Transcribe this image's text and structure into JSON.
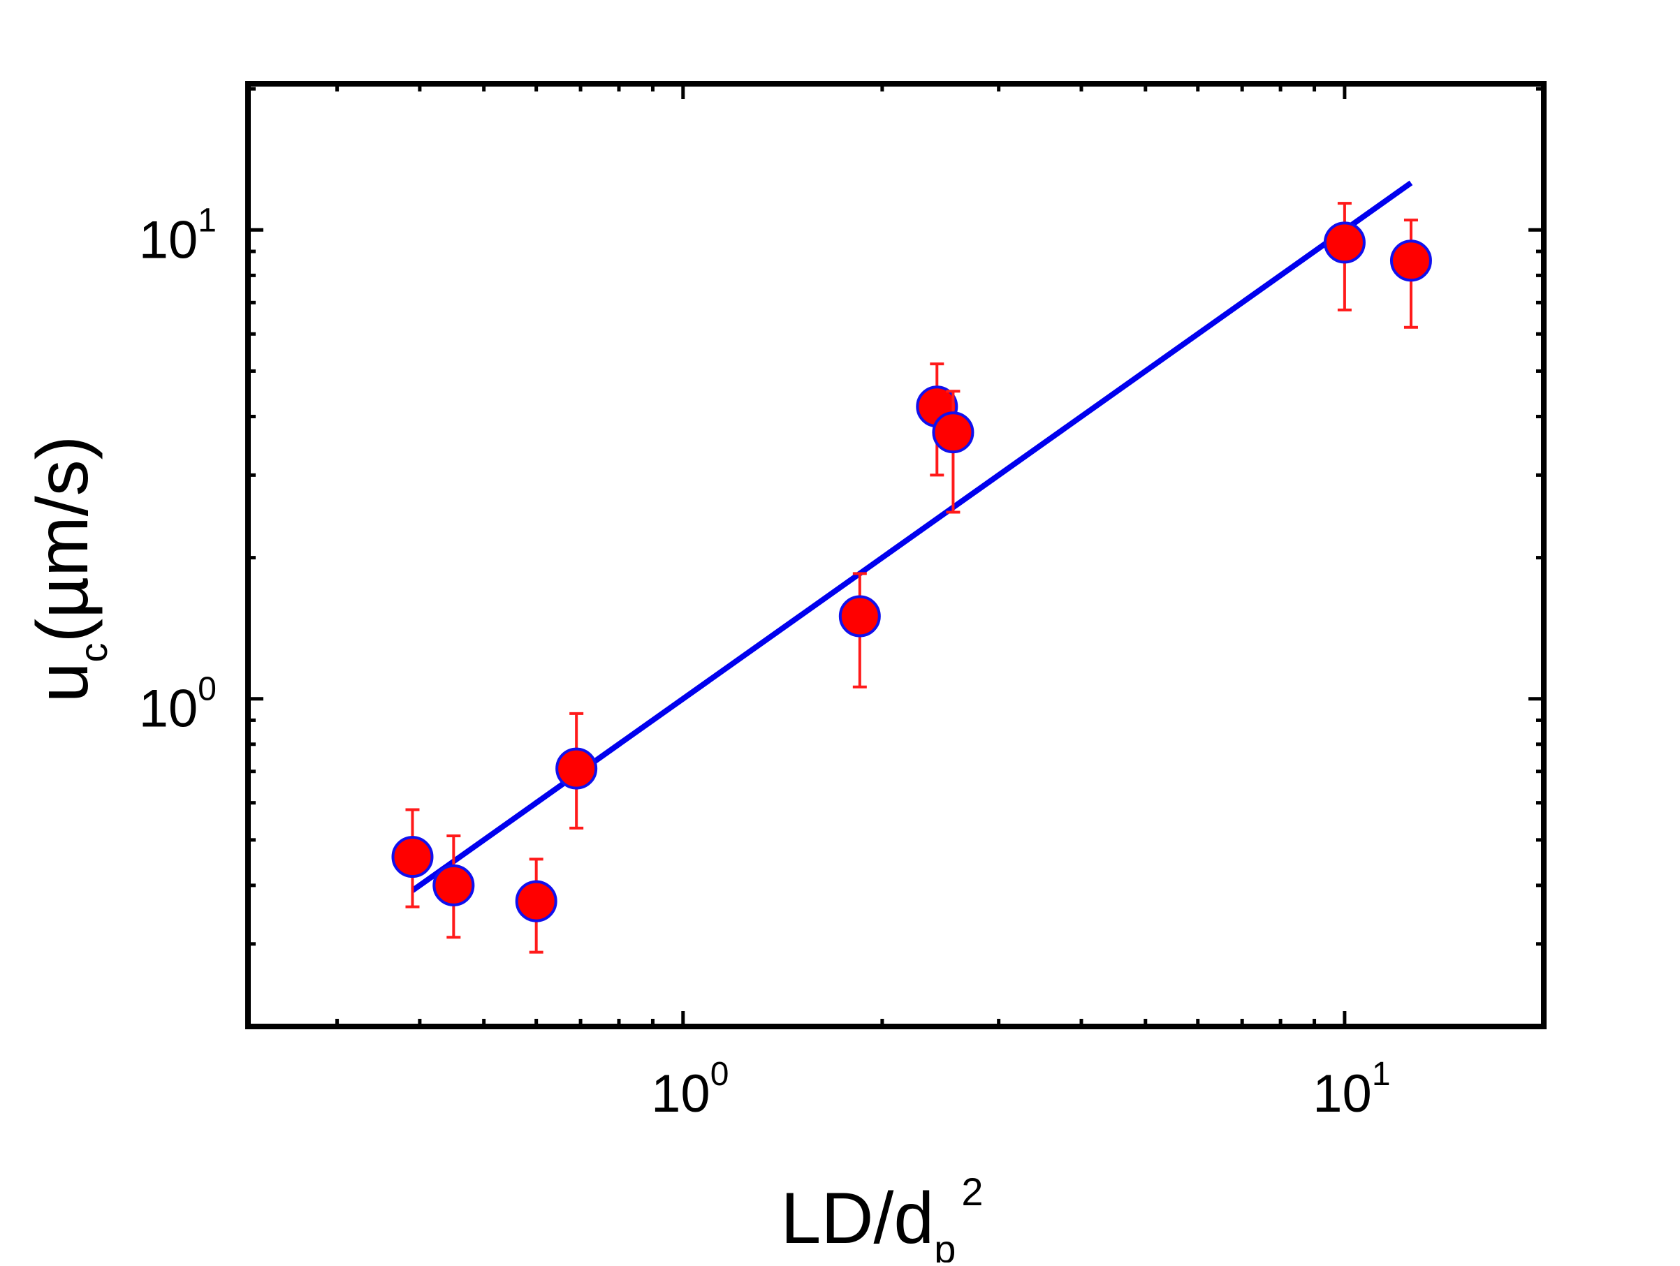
{
  "chart_data": {
    "type": "scatter",
    "title": "",
    "xlabel": {
      "main": "LD/d",
      "sub": "p",
      "sup": "2"
    },
    "ylabel": {
      "main": "u",
      "sub": "c",
      "rest": "(µm/s)"
    },
    "x_scale": "log",
    "y_scale": "log",
    "xlim": [
      0.22,
      20
    ],
    "ylim": [
      0.2,
      20.5
    ],
    "grid": false,
    "legend": "none",
    "x_ticks": [
      {
        "value": 1,
        "base": "10",
        "exp": "0"
      },
      {
        "value": 10,
        "base": "10",
        "exp": "1"
      }
    ],
    "y_ticks": [
      {
        "value": 1,
        "base": "10",
        "exp": "0"
      },
      {
        "value": 10,
        "base": "10",
        "exp": "1"
      }
    ],
    "colors": {
      "marker_fill": "#ff0000",
      "marker_edge": "#1010ee",
      "error_bar": "#ff1a1a",
      "fit_line": "#0000ee",
      "axes": "#000000"
    },
    "series": [
      {
        "kind": "points",
        "x": [
          0.39,
          0.45,
          0.6,
          0.69,
          1.85,
          2.42,
          2.56,
          10.0,
          12.6
        ],
        "y": [
          0.46,
          0.4,
          0.37,
          0.71,
          1.5,
          4.2,
          3.7,
          9.4,
          8.6
        ],
        "err_low": [
          0.1,
          0.09,
          0.082,
          0.18,
          0.44,
          1.2,
          1.2,
          2.65,
          2.4
        ],
        "err_high": [
          0.12,
          0.11,
          0.085,
          0.22,
          0.35,
          0.98,
          0.83,
          2.0,
          1.9
        ]
      },
      {
        "kind": "fit-line",
        "x": [
          0.39,
          12.6
        ],
        "y": [
          0.39,
          12.6
        ]
      }
    ]
  }
}
